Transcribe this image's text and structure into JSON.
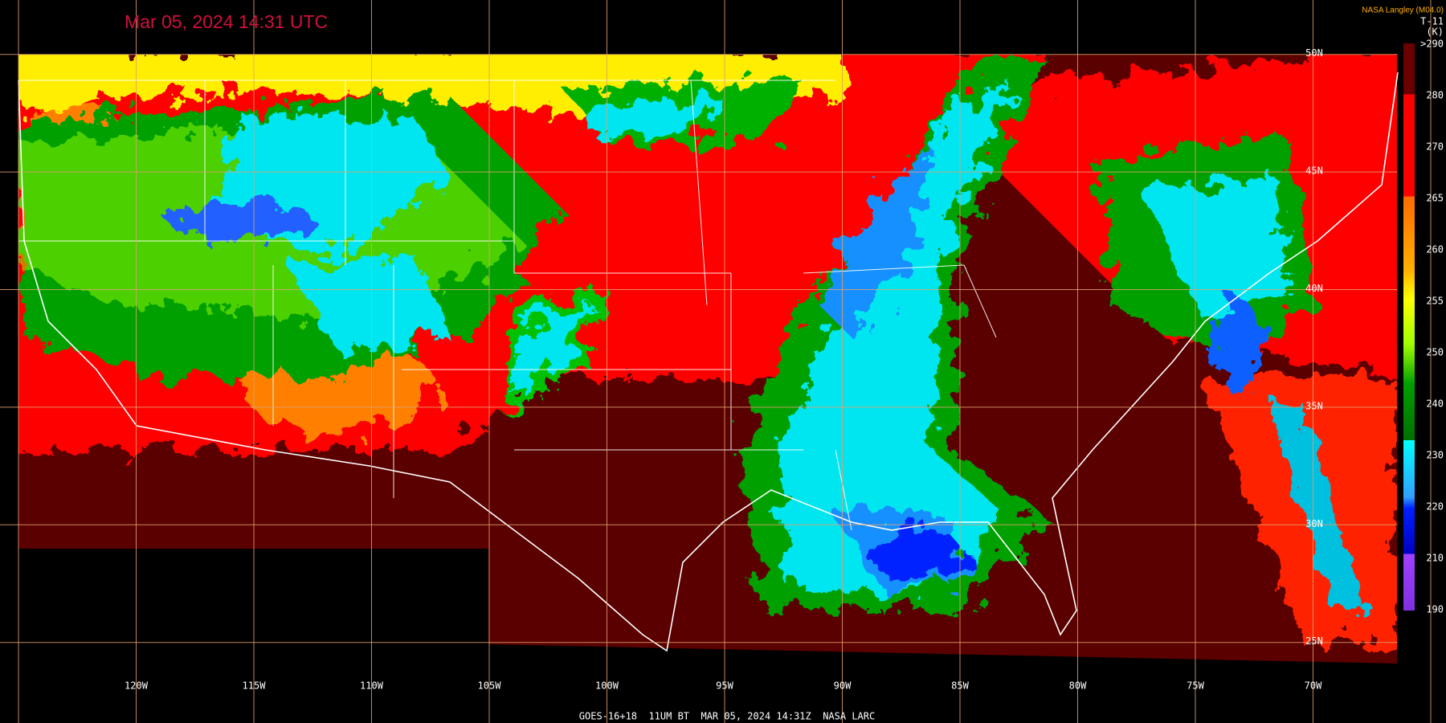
{
  "header": {
    "title": "Mar 05, 2024 14:31 UTC",
    "credit": "NASA Langley (M04.0)",
    "channel": "T-11",
    "unit": "(K)"
  },
  "colorbar": {
    "labels": [
      ">290",
      "280",
      "270",
      "265",
      "260",
      "255",
      "250",
      "240",
      "230",
      "220",
      "210",
      "190"
    ]
  },
  "grid": {
    "longitudes": [
      "120W",
      "115W",
      "110W",
      "105W",
      "100W",
      "95W",
      "90W",
      "85W",
      "80W",
      "75W",
      "70W"
    ],
    "latitudes": [
      "50N",
      "45N",
      "40N",
      "35N",
      "30N",
      "25N"
    ]
  },
  "footer": "GOES-16+18  11UM BT  MAR 05, 2024 14:31Z  NASA LARC"
}
